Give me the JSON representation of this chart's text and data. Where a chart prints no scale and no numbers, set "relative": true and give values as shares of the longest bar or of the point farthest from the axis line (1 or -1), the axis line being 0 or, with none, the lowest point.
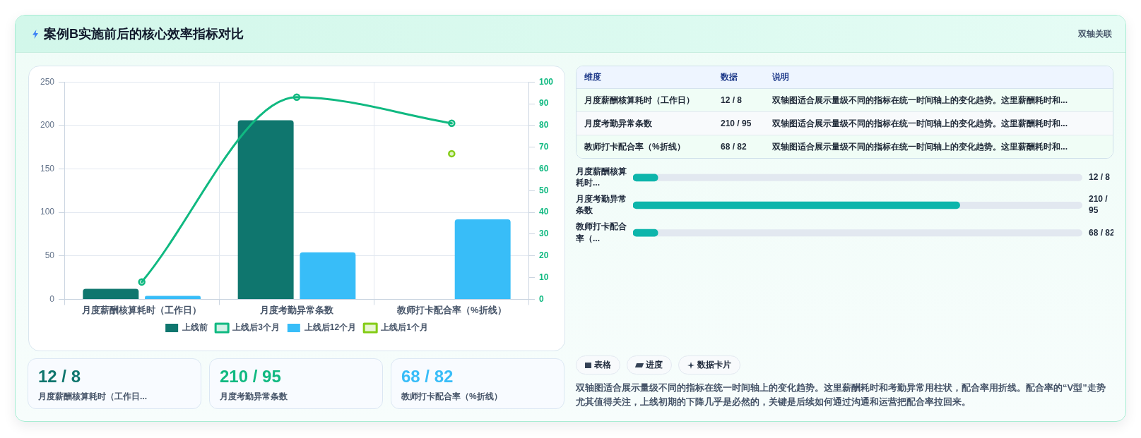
{
  "chart_data": [
    {
      "type": "other",
      "title": "案例B实施前后的核心效率指标对比",
      "subtitle": "双轴关联"
    },
    {
      "type": "bar",
      "categories": [
        "月度薪酬核算耗时（工作日）",
        "月度考勤异常条数",
        "教师打卡配合率（%折线）"
      ],
      "series": [
        {
          "name": "上线前",
          "type": "bar",
          "color": "#0f766e",
          "values": [
            12,
            206,
            null
          ]
        },
        {
          "name": "上线后3个月",
          "type": "line",
          "axis": "y2",
          "color": "#10b981",
          "values": [
            8,
            93,
            81
          ]
        },
        {
          "name": "上线后12个月",
          "type": "bar",
          "color": "#38bdf8",
          "values": [
            4,
            54,
            92
          ]
        },
        {
          "name": "上线后1个月",
          "type": "line",
          "axis": "y2",
          "color": "#84cc16",
          "values": [
            null,
            null,
            67
          ]
        }
      ],
      "ylim": [
        0,
        250
      ],
      "yticks": [
        0,
        50,
        100,
        150,
        200,
        250
      ],
      "y2lim": [
        0,
        100
      ],
      "y2ticks": [
        0,
        10,
        20,
        30,
        40,
        50,
        60,
        70,
        80,
        90,
        100
      ],
      "grid": true,
      "legend": "bottom",
      "marker": "circle"
    },
    {
      "type": "other",
      "categories": [
        "维度",
        "数据",
        "说明"
      ],
      "annotations": [
        "月度薪酬核算耗时（工作日）",
        "12 / 8",
        "双轴图适合展示量级不同的指标在统一时间轴上的变化趋势。这里薪酬耗时和...",
        "月度考勤异常条数",
        "210 / 95",
        "双轴图适合展示量级不同的指标在统一时间轴上的变化趋势。这里薪酬耗时和...",
        "教师打卡配合率（%折线）",
        "68 / 82",
        "双轴图适合展示量级不同的指标在统一时间轴上的变化趋势。这里薪酬耗时和..."
      ]
    },
    {
      "type": "bar",
      "orientation": "horizontal",
      "relative": true,
      "categories": [
        "月度薪酬核算耗时...",
        "月度考勤异常条数",
        "教师打卡配合率（..."
      ],
      "values": [
        0.076,
        1,
        0.076
      ],
      "color": "#0db5ab",
      "annotations": [
        "12 / 8",
        "210 / 95",
        "68 / 82"
      ]
    },
    {
      "type": "other",
      "categories": [
        "月度薪酬核算耗时（工作日...",
        "月度考勤异常条数",
        "教师打卡配合率（%折线）"
      ],
      "annotations": [
        "12 / 8",
        "210 / 95",
        "68 / 82"
      ]
    },
    {
      "type": "other",
      "annotations": [
        "表格",
        "进度",
        "数据卡片",
        "双轴图适合展示量级不同的指标在统一时间轴上的变化趋势。这里薪酬耗时和考勤异常用柱状，配合率用折线。配合率的“V型”走势尤其值得关注，上线初期的下降几乎是必然的，关键是后续如何通过沟通和运营把配合率拉回来。"
      ]
    }
  ]
}
